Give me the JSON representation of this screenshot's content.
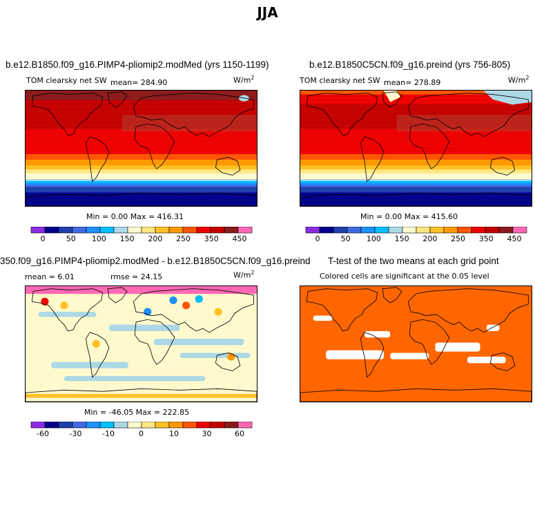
{
  "figure": {
    "title": "JJA"
  },
  "panels": [
    {
      "title": "b.e12.B1850.f09_g16.PIMP4-pliomip2.modMed (yrs 1150-1199)",
      "variable": "TOM clearsky net SW",
      "mean_text": "mean= 284.90",
      "units_base": "W/m",
      "units_exp": "2",
      "minmax": "Min =    0.00 Max = 416.31"
    },
    {
      "title": "b.e12.B1850C5CN.f09_g16.preind (yrs 756-805)",
      "variable": "TOM clearsky net SW",
      "mean_text": "mean=  278.89",
      "units_base": "W/m",
      "units_exp": "2",
      "minmax": "Min =    0.00 Max = 415.60"
    },
    {
      "title": "350.f09_g16.PIMP4-pliomip2.modMed - b.e12.B1850C5CN.f09_g16.preind",
      "mean_text": "mean =    6.01",
      "rmse_text": "rmse =  24.15",
      "units_base": "W/m",
      "units_exp": "2",
      "minmax": "Min = -46.05 Max = 222.85"
    },
    {
      "title": "T-test of the two means at each grid point",
      "subtitle": "Colored cells are significant at the 0.05 level"
    }
  ],
  "colorbars": {
    "sw": {
      "colors": [
        "#8a2be2",
        "#00008b",
        "#1e3fae",
        "#4169e1",
        "#1e90ff",
        "#00bfff",
        "#add8e6",
        "#fffacd",
        "#ffe680",
        "#ffc125",
        "#ff9900",
        "#ff5500",
        "#ee0000",
        "#c40000",
        "#8b1a1a",
        "#ff69b4"
      ],
      "ticks": [
        "0",
        "50",
        "100",
        "150",
        "200",
        "250",
        "350",
        "450"
      ]
    },
    "diff": {
      "colors": [
        "#8a2be2",
        "#00008b",
        "#1e3fae",
        "#4169e1",
        "#1e90ff",
        "#00bfff",
        "#add8e6",
        "#fffacd",
        "#ffe680",
        "#ffc125",
        "#ff9900",
        "#ff5500",
        "#ee0000",
        "#c40000",
        "#8b1a1a",
        "#ff69b4"
      ],
      "ticks": [
        "-60",
        "-30",
        "-10",
        "0",
        "10",
        "30",
        "60"
      ]
    }
  },
  "chart_data": [
    {
      "type": "heatmap",
      "title": "b.e12.B1850.f09_g16.PIMP4-pliomip2.modMed (yrs 1150-1199)",
      "variable": "TOM clearsky net SW",
      "units": "W/m2",
      "mean": 284.9,
      "min": 0.0,
      "max": 416.31,
      "color_levels": [
        0,
        25,
        50,
        75,
        100,
        125,
        150,
        200,
        225,
        250,
        275,
        300,
        350,
        400,
        450
      ],
      "latitude_profile": {
        "lat": [
          90,
          75,
          60,
          45,
          30,
          15,
          0,
          -15,
          -30,
          -45,
          -60,
          -75,
          -90
        ],
        "value": [
          410,
          400,
          390,
          370,
          350,
          335,
          320,
          290,
          235,
          165,
          55,
          0,
          0
        ]
      }
    },
    {
      "type": "heatmap",
      "title": "b.e12.B1850C5CN.f09_g16.preind (yrs 756-805)",
      "variable": "TOM clearsky net SW",
      "units": "W/m2",
      "mean": 278.89,
      "min": 0.0,
      "max": 415.6,
      "color_levels": [
        0,
        25,
        50,
        75,
        100,
        125,
        150,
        200,
        225,
        250,
        275,
        300,
        350,
        400,
        450
      ],
      "latitude_profile": {
        "lat": [
          90,
          75,
          60,
          45,
          30,
          15,
          0,
          -15,
          -30,
          -45,
          -60,
          -75,
          -90
        ],
        "value": [
          270,
          330,
          385,
          370,
          350,
          335,
          320,
          290,
          235,
          165,
          55,
          0,
          0
        ]
      }
    },
    {
      "type": "heatmap",
      "title": "350.f09_g16.PIMP4-pliomip2.modMed - b.e12.B1850C5CN.f09_g16.preind",
      "units": "W/m2",
      "mean": 6.01,
      "rmse": 24.15,
      "min": -46.05,
      "max": 222.85,
      "color_levels": [
        -60,
        -45,
        -30,
        -20,
        -10,
        -5,
        0,
        5,
        10,
        20,
        30,
        45,
        60
      ],
      "latitude_profile": {
        "lat": [
          90,
          75,
          60,
          45,
          30,
          15,
          0,
          -15,
          -30,
          -45,
          -60,
          -75,
          -90
        ],
        "value": [
          120,
          60,
          10,
          3,
          2,
          0,
          0,
          -5,
          0,
          3,
          0,
          0,
          0
        ]
      }
    },
    {
      "type": "heatmap",
      "title": "T-test of the two means at each grid point",
      "subtitle": "Colored cells are significant at the 0.05 level",
      "significance_level": 0.05
    }
  ]
}
